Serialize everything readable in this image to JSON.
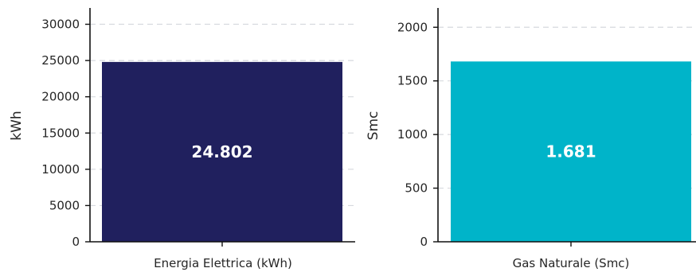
{
  "chart_data": [
    {
      "type": "bar",
      "categories": [
        "Energia Elettrica (kWh)"
      ],
      "values": [
        24802
      ],
      "data_labels": [
        "24.802"
      ],
      "ylabel": "kWh",
      "xlabel": "",
      "ylim": [
        0,
        32250
      ],
      "yticks": [
        0,
        5000,
        10000,
        15000,
        20000,
        25000,
        30000
      ],
      "ytick_labels": [
        "0",
        "5000",
        "10000",
        "15000",
        "20000",
        "25000",
        "30000"
      ],
      "grid": "horizontal dashed",
      "colors": [
        "#20205e"
      ]
    },
    {
      "type": "bar",
      "categories": [
        "Gas Naturale (Smc)"
      ],
      "values": [
        1681
      ],
      "data_labels": [
        "1.681"
      ],
      "ylabel": "Smc",
      "xlabel": "",
      "ylim": [
        0,
        2180
      ],
      "yticks": [
        0,
        500,
        1000,
        1500,
        2000
      ],
      "ytick_labels": [
        "0",
        "500",
        "1000",
        "1500",
        "2000"
      ],
      "grid": "horizontal dashed",
      "colors": [
        "#00b4c9"
      ]
    }
  ]
}
